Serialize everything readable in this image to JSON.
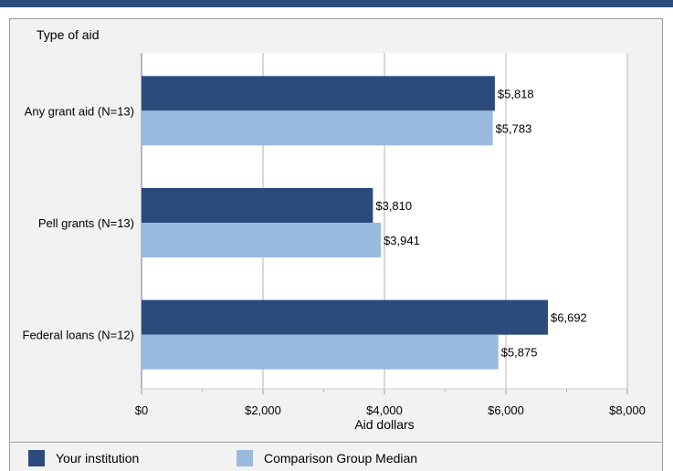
{
  "chart_data": {
    "type": "bar",
    "orientation": "horizontal",
    "title": "Type of aid",
    "xlabel": "Aid dollars",
    "categories": [
      "Any grant aid (N=13)",
      "Pell grants (N=13)",
      "Federal loans (N=12)"
    ],
    "series": [
      {
        "name": "Your institution",
        "color": "#2a4b7c",
        "values": [
          5818,
          3810,
          6692
        ],
        "labels": [
          "$5,818",
          "$3,810",
          "$6,692"
        ]
      },
      {
        "name": "Comparison Group Median",
        "color": "#9ab9de",
        "values": [
          5783,
          3941,
          5875
        ],
        "labels": [
          "$5,783",
          "$3,941",
          "$5,875"
        ]
      }
    ],
    "xlim": [
      0,
      8000
    ],
    "xticks": [
      0,
      2000,
      4000,
      6000,
      8000
    ],
    "xtick_labels": [
      "$0",
      "$2,000",
      "$4,000",
      "$6,000",
      "$8,000"
    ],
    "grid": true,
    "legend_position": "bottom"
  }
}
